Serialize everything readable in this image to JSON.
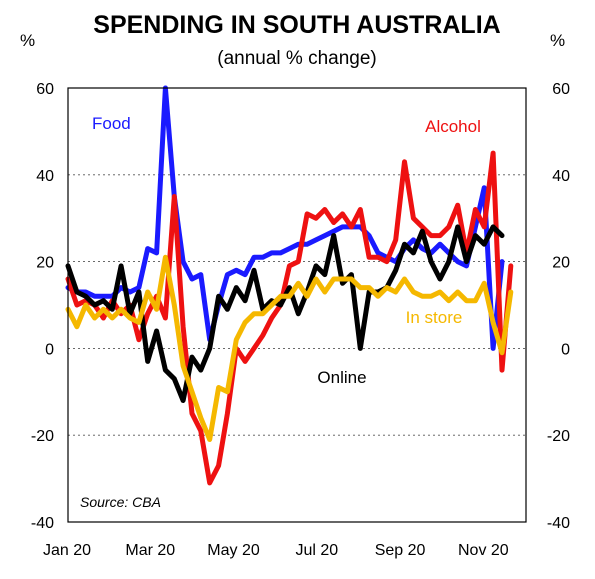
{
  "chart_data": {
    "type": "line",
    "title": "SPENDING IN SOUTH AUSTRALIA",
    "subtitle": "(annual % change)",
    "left_unit": "%",
    "right_unit": "%",
    "source": "Source: CBA",
    "x_ticks": [
      "Jan 20",
      "Mar 20",
      "May 20",
      "Jul 20",
      "Sep 20",
      "Nov 20"
    ],
    "xlim": [
      "2020-01-01",
      "2020-12-28"
    ],
    "ylim": [
      -40,
      60
    ],
    "y_ticks": [
      -40,
      -20,
      0,
      20,
      40,
      60
    ],
    "y_tick_labels": [
      "-40",
      "-20",
      "0",
      "20",
      "40",
      "60"
    ],
    "gridlines": [
      -20,
      0,
      20,
      40
    ],
    "grid": "dotted horizontal",
    "series": [
      {
        "name": "Food",
        "color": "#1a1aff",
        "label_position": "top-left",
        "points": [
          [
            "2020-01-01",
            14
          ],
          [
            "2020-01-08",
            13
          ],
          [
            "2020-01-15",
            13
          ],
          [
            "2020-01-22",
            12
          ],
          [
            "2020-01-29",
            12
          ],
          [
            "2020-02-05",
            12
          ],
          [
            "2020-02-12",
            14
          ],
          [
            "2020-02-19",
            13
          ],
          [
            "2020-02-26",
            14
          ],
          [
            "2020-03-04",
            23
          ],
          [
            "2020-03-11",
            22
          ],
          [
            "2020-03-18",
            60
          ],
          [
            "2020-03-25",
            35
          ],
          [
            "2020-04-01",
            20
          ],
          [
            "2020-04-08",
            16
          ],
          [
            "2020-04-15",
            17
          ],
          [
            "2020-04-22",
            2
          ],
          [
            "2020-04-29",
            10
          ],
          [
            "2020-05-06",
            17
          ],
          [
            "2020-05-13",
            18
          ],
          [
            "2020-05-20",
            17
          ],
          [
            "2020-05-27",
            21
          ],
          [
            "2020-06-03",
            21
          ],
          [
            "2020-06-10",
            22
          ],
          [
            "2020-06-17",
            22
          ],
          [
            "2020-06-24",
            23
          ],
          [
            "2020-07-01",
            24
          ],
          [
            "2020-07-08",
            24
          ],
          [
            "2020-07-15",
            25
          ],
          [
            "2020-07-22",
            26
          ],
          [
            "2020-07-29",
            27
          ],
          [
            "2020-08-05",
            28
          ],
          [
            "2020-08-12",
            28
          ],
          [
            "2020-08-19",
            28
          ],
          [
            "2020-08-26",
            26
          ],
          [
            "2020-09-02",
            22
          ],
          [
            "2020-09-09",
            21
          ],
          [
            "2020-09-16",
            20
          ],
          [
            "2020-09-23",
            23
          ],
          [
            "2020-09-30",
            25
          ],
          [
            "2020-10-07",
            23
          ],
          [
            "2020-10-14",
            22
          ],
          [
            "2020-10-21",
            24
          ],
          [
            "2020-10-28",
            22
          ],
          [
            "2020-11-04",
            20
          ],
          [
            "2020-11-11",
            19
          ],
          [
            "2020-11-18",
            28
          ],
          [
            "2020-11-25",
            37
          ],
          [
            "2020-12-02",
            0
          ],
          [
            "2020-12-09",
            20
          ]
        ]
      },
      {
        "name": "Alcohol",
        "color": "#ee1111",
        "label_position": "top-right",
        "points": [
          [
            "2020-01-01",
            16
          ],
          [
            "2020-01-08",
            10
          ],
          [
            "2020-01-15",
            11
          ],
          [
            "2020-01-22",
            10
          ],
          [
            "2020-01-29",
            7
          ],
          [
            "2020-02-05",
            11
          ],
          [
            "2020-02-12",
            8
          ],
          [
            "2020-02-19",
            10
          ],
          [
            "2020-02-26",
            2
          ],
          [
            "2020-03-04",
            8
          ],
          [
            "2020-03-11",
            12
          ],
          [
            "2020-03-18",
            7
          ],
          [
            "2020-03-25",
            35
          ],
          [
            "2020-04-01",
            5
          ],
          [
            "2020-04-08",
            -15
          ],
          [
            "2020-04-15",
            -19
          ],
          [
            "2020-04-22",
            -31
          ],
          [
            "2020-04-29",
            -27
          ],
          [
            "2020-05-06",
            -15
          ],
          [
            "2020-05-13",
            0
          ],
          [
            "2020-05-20",
            -3
          ],
          [
            "2020-05-27",
            0
          ],
          [
            "2020-06-03",
            3
          ],
          [
            "2020-06-10",
            7
          ],
          [
            "2020-06-17",
            10
          ],
          [
            "2020-06-24",
            19
          ],
          [
            "2020-07-01",
            20
          ],
          [
            "2020-07-08",
            31
          ],
          [
            "2020-07-15",
            30
          ],
          [
            "2020-07-22",
            32
          ],
          [
            "2020-07-29",
            29
          ],
          [
            "2020-08-05",
            31
          ],
          [
            "2020-08-12",
            28
          ],
          [
            "2020-08-19",
            32
          ],
          [
            "2020-08-26",
            21
          ],
          [
            "2020-09-02",
            21
          ],
          [
            "2020-09-09",
            20
          ],
          [
            "2020-09-16",
            25
          ],
          [
            "2020-09-23",
            43
          ],
          [
            "2020-09-30",
            30
          ],
          [
            "2020-10-07",
            28
          ],
          [
            "2020-10-14",
            26
          ],
          [
            "2020-10-21",
            26
          ],
          [
            "2020-10-28",
            28
          ],
          [
            "2020-11-04",
            33
          ],
          [
            "2020-11-11",
            22
          ],
          [
            "2020-11-18",
            32
          ],
          [
            "2020-11-25",
            28
          ],
          [
            "2020-12-02",
            45
          ],
          [
            "2020-12-09",
            -5
          ],
          [
            "2020-12-16",
            19
          ]
        ]
      },
      {
        "name": "Online",
        "color": "#000000",
        "label_position": "bottom-center",
        "points": [
          [
            "2020-01-01",
            19
          ],
          [
            "2020-01-08",
            13
          ],
          [
            "2020-01-15",
            12
          ],
          [
            "2020-01-22",
            10
          ],
          [
            "2020-01-29",
            11
          ],
          [
            "2020-02-05",
            9
          ],
          [
            "2020-02-12",
            19
          ],
          [
            "2020-02-19",
            8
          ],
          [
            "2020-02-26",
            13
          ],
          [
            "2020-03-04",
            -3
          ],
          [
            "2020-03-11",
            4
          ],
          [
            "2020-03-18",
            -5
          ],
          [
            "2020-03-25",
            -7
          ],
          [
            "2020-04-01",
            -12
          ],
          [
            "2020-04-08",
            -2
          ],
          [
            "2020-04-15",
            -5
          ],
          [
            "2020-04-22",
            0
          ],
          [
            "2020-04-29",
            12
          ],
          [
            "2020-05-06",
            9
          ],
          [
            "2020-05-13",
            14
          ],
          [
            "2020-05-20",
            11
          ],
          [
            "2020-05-27",
            18
          ],
          [
            "2020-06-03",
            9
          ],
          [
            "2020-06-10",
            11
          ],
          [
            "2020-06-17",
            10
          ],
          [
            "2020-06-24",
            14
          ],
          [
            "2020-07-01",
            8
          ],
          [
            "2020-07-08",
            13
          ],
          [
            "2020-07-15",
            19
          ],
          [
            "2020-07-22",
            17
          ],
          [
            "2020-07-29",
            26
          ],
          [
            "2020-08-05",
            15
          ],
          [
            "2020-08-12",
            17
          ],
          [
            "2020-08-19",
            0
          ],
          [
            "2020-08-26",
            13
          ],
          [
            "2020-09-02",
            13
          ],
          [
            "2020-09-09",
            14
          ],
          [
            "2020-09-16",
            18
          ],
          [
            "2020-09-23",
            24
          ],
          [
            "2020-09-30",
            22
          ],
          [
            "2020-10-07",
            27
          ],
          [
            "2020-10-14",
            20
          ],
          [
            "2020-10-21",
            16
          ],
          [
            "2020-10-28",
            20
          ],
          [
            "2020-11-04",
            28
          ],
          [
            "2020-11-11",
            20
          ],
          [
            "2020-11-18",
            26
          ],
          [
            "2020-11-25",
            24
          ],
          [
            "2020-12-02",
            28
          ],
          [
            "2020-12-09",
            26
          ]
        ]
      },
      {
        "name": "In store",
        "color": "#f5b800",
        "label_position": "right",
        "points": [
          [
            "2020-01-01",
            9
          ],
          [
            "2020-01-08",
            5
          ],
          [
            "2020-01-15",
            10
          ],
          [
            "2020-01-22",
            7
          ],
          [
            "2020-01-29",
            9
          ],
          [
            "2020-02-05",
            7
          ],
          [
            "2020-02-12",
            9
          ],
          [
            "2020-02-19",
            7
          ],
          [
            "2020-02-26",
            6
          ],
          [
            "2020-03-04",
            13
          ],
          [
            "2020-03-11",
            9
          ],
          [
            "2020-03-18",
            21
          ],
          [
            "2020-03-25",
            10
          ],
          [
            "2020-04-01",
            -4
          ],
          [
            "2020-04-08",
            -10
          ],
          [
            "2020-04-15",
            -16
          ],
          [
            "2020-04-22",
            -21
          ],
          [
            "2020-04-29",
            -9
          ],
          [
            "2020-05-06",
            -10
          ],
          [
            "2020-05-13",
            2
          ],
          [
            "2020-05-20",
            6
          ],
          [
            "2020-05-27",
            8
          ],
          [
            "2020-06-03",
            8
          ],
          [
            "2020-06-10",
            10
          ],
          [
            "2020-06-17",
            12
          ],
          [
            "2020-06-24",
            12
          ],
          [
            "2020-07-01",
            15
          ],
          [
            "2020-07-08",
            12
          ],
          [
            "2020-07-15",
            16
          ],
          [
            "2020-07-22",
            13
          ],
          [
            "2020-07-29",
            16
          ],
          [
            "2020-08-05",
            16
          ],
          [
            "2020-08-12",
            16
          ],
          [
            "2020-08-19",
            14
          ],
          [
            "2020-08-26",
            14
          ],
          [
            "2020-09-02",
            12
          ],
          [
            "2020-09-09",
            14
          ],
          [
            "2020-09-16",
            13
          ],
          [
            "2020-09-23",
            16
          ],
          [
            "2020-09-30",
            13
          ],
          [
            "2020-10-07",
            12
          ],
          [
            "2020-10-14",
            12
          ],
          [
            "2020-10-21",
            13
          ],
          [
            "2020-10-28",
            11
          ],
          [
            "2020-11-04",
            13
          ],
          [
            "2020-11-11",
            11
          ],
          [
            "2020-11-18",
            11
          ],
          [
            "2020-11-25",
            15
          ],
          [
            "2020-12-02",
            6
          ],
          [
            "2020-12-09",
            -1
          ],
          [
            "2020-12-16",
            13
          ]
        ]
      }
    ]
  }
}
